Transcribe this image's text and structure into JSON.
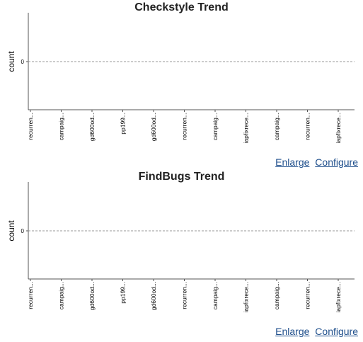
{
  "chart_data": [
    {
      "type": "line",
      "title": "Checkstyle Trend",
      "ylabel": "count",
      "xlabel": "",
      "yticks": [
        "0"
      ],
      "categories": [
        "recurren...",
        "campaig...",
        "gd600od...",
        "pp199...",
        "gd600od...",
        "recurren...",
        "campaig...",
        "iapfixrece...",
        "campaig...",
        "recurren...",
        "iapfixrece..."
      ],
      "series": [],
      "grid": "dashed horizontal at 0",
      "legend": "none"
    },
    {
      "type": "line",
      "title": "FindBugs Trend",
      "ylabel": "count",
      "xlabel": "",
      "yticks": [
        "0"
      ],
      "categories": [
        "recurren...",
        "campaig...",
        "gd600od...",
        "pp199...",
        "gd600od...",
        "recurren...",
        "campaig...",
        "iapfixrece...",
        "campaig...",
        "recurren...",
        "iapfixrece..."
      ],
      "series": [],
      "grid": "dashed horizontal at 0",
      "legend": "none"
    }
  ],
  "links": {
    "enlarge": "Enlarge",
    "configure": "Configure"
  },
  "colors": {
    "axis": "#555555",
    "grid": "#999999",
    "link": "#1f4f8c"
  }
}
